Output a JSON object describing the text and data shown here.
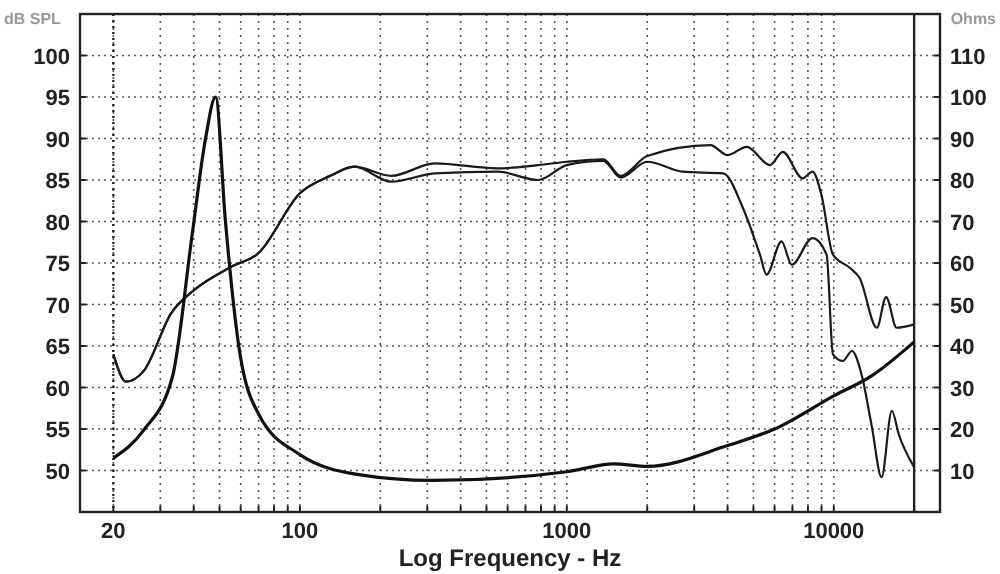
{
  "chart_data": {
    "type": "line",
    "xlabel": "Log Frequency - Hz",
    "ylabel": "dB SPL",
    "y2label": "Ohms",
    "log": "x",
    "grid": true,
    "line_style": "solid",
    "xlim": [
      15,
      25000
    ],
    "ylim": [
      45,
      105
    ],
    "y2lim": [
      0,
      120
    ],
    "xticks": [
      20,
      {
        "value": 30,
        "label": null
      },
      {
        "value": 40,
        "label": null
      },
      {
        "value": 50,
        "label": null
      },
      {
        "value": 60,
        "label": null
      },
      {
        "value": 70,
        "label": null
      },
      {
        "value": 80,
        "label": null
      },
      {
        "value": 90,
        "label": null
      },
      100,
      {
        "value": 200,
        "label": null
      },
      {
        "value": 300,
        "label": null
      },
      {
        "value": 400,
        "label": null
      },
      {
        "value": 500,
        "label": null
      },
      {
        "value": 600,
        "label": null
      },
      {
        "value": 700,
        "label": null
      },
      {
        "value": 800,
        "label": null
      },
      {
        "value": 900,
        "label": null
      },
      1000,
      {
        "value": 2000,
        "label": null
      },
      {
        "value": 3000,
        "label": null
      },
      {
        "value": 4000,
        "label": null
      },
      {
        "value": 5000,
        "label": null
      },
      {
        "value": 6000,
        "label": null
      },
      {
        "value": 7000,
        "label": null
      },
      {
        "value": 8000,
        "label": null
      },
      {
        "value": 9000,
        "label": null
      },
      10000,
      {
        "value": 20000,
        "label": null
      }
    ],
    "yticks": [
      50,
      55,
      60,
      65,
      70,
      75,
      80,
      85,
      90,
      95,
      100
    ],
    "y2ticks": [
      10,
      20,
      30,
      40,
      50,
      60,
      70,
      80,
      90,
      100,
      110
    ],
    "ref_lines": [
      {
        "axis": "x",
        "value": 20,
        "color": "#222222",
        "line_style": "dotted"
      },
      {
        "axis": "x",
        "value": 20000,
        "color": "#222222",
        "line_style": "solid"
      }
    ],
    "series": [
      {
        "color": "#1a1a1a",
        "x": [
          20,
          22.3,
          26,
          33,
          40,
          55,
          70,
          100,
          130,
          160,
          220,
          320,
          550,
          780,
          1000,
          1370,
          1590,
          2000,
          3450,
          4000,
          4720,
          5770,
          6440,
          7640,
          8320,
          8990,
          9930,
          11500,
          12500,
          14500,
          15700,
          17200,
          20000
        ],
        "values": [
          64,
          60.7,
          62,
          69,
          71.7,
          74.5,
          76.2,
          83.4,
          85.5,
          86.6,
          85.5,
          87,
          86.4,
          86.8,
          87.2,
          87.5,
          85.5,
          87.9,
          89.2,
          88,
          89,
          86.8,
          88.4,
          85.2,
          86,
          83.2,
          76,
          74.4,
          73.2,
          67.2,
          70.9,
          67.2,
          67.6
        ]
      },
      {
        "color": "#1a1a1a",
        "x": [
          20,
          22.3,
          26,
          33,
          40,
          55,
          70,
          100,
          130,
          160,
          220,
          320,
          550,
          780,
          1000,
          1370,
          1590,
          2000,
          2720,
          3850,
          4570,
          5290,
          5600,
          6370,
          6960,
          8320,
          9400,
          9930,
          10800,
          11700,
          12700,
          13900,
          15100,
          16500,
          17500,
          20000
        ],
        "values": [
          64,
          60.7,
          62,
          69,
          71.7,
          74.5,
          76.2,
          83.4,
          85.5,
          86.6,
          84.8,
          85.8,
          86,
          85,
          86.8,
          87.3,
          85.3,
          87.2,
          86,
          85.8,
          81.6,
          76,
          73.6,
          77.6,
          74.8,
          78,
          76,
          64,
          63.2,
          64.4,
          61.6,
          55.2,
          49.2,
          57.2,
          54.4,
          50.4
        ]
      },
      {
        "color": "#111111",
        "axis": "y2",
        "x": [
          20,
          25.9,
          33.3,
          39.5,
          44.3,
          48.3,
          52.6,
          59,
          70,
          99,
          166,
          311,
          1000,
          1500,
          2000,
          4000,
          6000,
          10000,
          14000,
          20000
        ],
        "values": [
          13,
          19.6,
          32.6,
          67,
          90,
          100,
          70,
          40,
          23.6,
          14,
          9,
          7.6,
          9.7,
          11.6,
          11,
          16,
          20,
          28,
          33,
          41
        ]
      }
    ]
  }
}
